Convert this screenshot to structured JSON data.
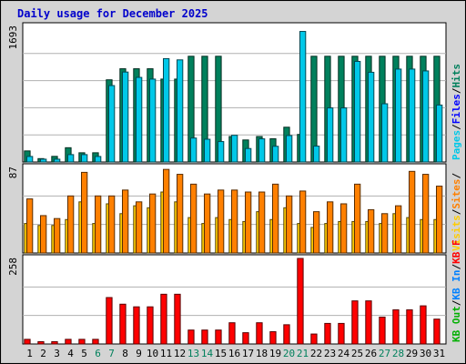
{
  "chart_data": {
    "type": "bar",
    "title": "Daily usage for December 2025",
    "x": [
      1,
      2,
      3,
      4,
      5,
      6,
      7,
      8,
      9,
      10,
      11,
      12,
      13,
      14,
      15,
      16,
      17,
      18,
      19,
      20,
      21,
      22,
      23,
      24,
      25,
      26,
      27,
      28,
      29,
      30,
      31
    ],
    "x_weekend": [
      6,
      7,
      13,
      14,
      20,
      21,
      27,
      28
    ],
    "panels": [
      {
        "name": "hits-files-pages",
        "ymax_label": "1693",
        "ylim": [
          0,
          1693
        ],
        "series": [
          {
            "name": "Hits",
            "color": "#00805c",
            "values": [
              138,
              42,
              70,
              178,
              115,
              115,
              1026,
              1164,
              1164,
              1164,
              1035,
              1035,
              1320,
              1320,
              1320,
              318,
              275,
              318,
              290,
              434,
              344,
              1320,
              1320,
              1320,
              1320,
              1320,
              1320,
              1320,
              1320,
              1320,
              1320
            ]
          },
          {
            "name": "Files",
            "color": "#0000ff",
            "values": [
              0,
              0,
              0,
              0,
              0,
              0,
              0,
              0,
              0,
              0,
              0,
              0,
              0,
              0,
              0,
              0,
              0,
              0,
              0,
              0,
              0,
              0,
              0,
              0,
              0,
              0,
              0,
              0,
              0,
              0,
              0
            ]
          },
          {
            "name": "Pages",
            "color": "#00c8e8",
            "values": [
              69,
              35,
              35,
              92,
              92,
              69,
              954,
              1123,
              1056,
              1035,
              1290,
              1275,
              299,
              284,
              255,
              333,
              168,
              289,
              196,
              330,
              1630,
              198,
              675,
              675,
              1256,
              1120,
              727,
              1160,
              1160,
              1137,
              711
            ]
          }
        ]
      },
      {
        "name": "visits-sites",
        "ymax_label": "87",
        "ylim": [
          0,
          87
        ],
        "series": [
          {
            "name": "Visits",
            "color": "#ffcc00",
            "values": [
              30,
              28,
              28,
              34,
              52,
              30,
              50,
              40,
              48,
              46,
              62,
              52,
              36,
              30,
              36,
              34,
              32,
              42,
              34,
              46,
              30,
              26,
              30,
              32,
              32,
              32,
              30,
              40,
              36,
              34,
              34
            ]
          },
          {
            "name": "Sites",
            "color": "#ff8000",
            "values": [
              55,
              38,
              35,
              58,
              82,
              58,
              58,
              64,
              52,
              60,
              85,
              80,
              70,
              60,
              64,
              64,
              62,
              62,
              70,
              58,
              63,
              42,
              52,
              50,
              70,
              44,
              40,
              48,
              83,
              80,
              68
            ]
          }
        ]
      },
      {
        "name": "kbin-kbout-kbf",
        "ymax_label": "258",
        "ylim": [
          0,
          258
        ],
        "series": [
          {
            "name": "KB F",
            "color": "#ff0000",
            "values": [
              14,
              7,
              7,
              14,
              14,
              14,
              140,
              120,
              112,
              112,
              150,
              150,
              42,
              42,
              42,
              64,
              34,
              64,
              37,
              58,
              258,
              30,
              62,
              62,
              130,
              130,
              81,
              103,
              103,
              115,
              75
            ]
          },
          {
            "name": "KB In",
            "color": "#0080ff",
            "values": [
              0,
              0,
              0,
              0,
              0,
              0,
              0,
              0,
              0,
              0,
              0,
              0,
              0,
              0,
              0,
              0,
              0,
              0,
              0,
              0,
              0,
              0,
              0,
              0,
              0,
              0,
              0,
              0,
              0,
              0,
              0
            ]
          },
          {
            "name": "KB Out",
            "color": "#00b000",
            "values": [
              0,
              0,
              0,
              0,
              0,
              0,
              0,
              0,
              0,
              0,
              0,
              0,
              0,
              0,
              0,
              0,
              0,
              0,
              0,
              0,
              0,
              0,
              0,
              0,
              0,
              0,
              0,
              0,
              0,
              0,
              0
            ]
          }
        ]
      }
    ],
    "legend_right": [
      {
        "label": "Pages",
        "color": "#00c8e8"
      },
      {
        "label": "/",
        "color": "#000000"
      },
      {
        "label": "Files",
        "color": "#0000ff"
      },
      {
        "label": "/",
        "color": "#000000"
      },
      {
        "label": "Hits",
        "color": "#00805c"
      },
      {
        "label": "Visits",
        "color": "#ffcc00"
      },
      {
        "label": "/",
        "color": "#000000"
      },
      {
        "label": "Sites",
        "color": "#ff8000"
      },
      {
        "label": "/",
        "color": "#000000"
      },
      {
        "label": "KB Out",
        "color": "#00b000"
      },
      {
        "label": "/",
        "color": "#000000"
      },
      {
        "label": "KB In",
        "color": "#0080ff"
      },
      {
        "label": "/",
        "color": "#000000"
      },
      {
        "label": "KB F",
        "color": "#ff0000"
      }
    ],
    "title_color": "#0000cc",
    "weekend_label_color": "#00805c"
  }
}
